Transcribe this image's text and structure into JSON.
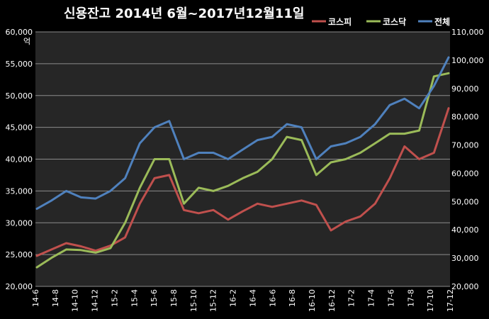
{
  "chart_data": {
    "type": "line",
    "title": "신용잔고 2014년 6월~2017년12월11일",
    "ylabel": "억",
    "ylim_left": [
      20000,
      60000
    ],
    "ylim_right": [
      20000,
      110000
    ],
    "yticks_left": [
      "20,000",
      "25,000",
      "30,000",
      "35,000",
      "40,000",
      "45,000",
      "50,000",
      "55,000",
      "60,000"
    ],
    "yticks_right": [
      "20,000",
      "30,000",
      "40,000",
      "50,000",
      "60,000",
      "70,000",
      "80,000",
      "90,000",
      "100,000",
      "110,000"
    ],
    "x_ticks": [
      "14-6",
      "14-8",
      "14-10",
      "14-12",
      "15-2",
      "15-4",
      "15-6",
      "15-8",
      "15-10",
      "15-12",
      "16-2",
      "16-4",
      "16-6",
      "16-8",
      "16-10",
      "16-12",
      "17-2",
      "17-4",
      "17-6",
      "17-8",
      "17-10",
      "17-12"
    ],
    "grid": "horizontal",
    "legend_position": "top-right",
    "series": [
      {
        "name": "코스피",
        "axis": "left",
        "color": "#c0504d",
        "values": [
          24800,
          25800,
          26800,
          26300,
          25600,
          26400,
          27700,
          33000,
          37000,
          37500,
          32000,
          31500,
          32000,
          30500,
          31800,
          33000,
          32500,
          33000,
          33500,
          32800,
          28800,
          30200,
          31000,
          33000,
          37000,
          42000,
          40000,
          41000,
          48000
        ]
      },
      {
        "name": "코스닥",
        "axis": "left",
        "color": "#9bbb59",
        "values": [
          23000,
          24500,
          25800,
          25700,
          25300,
          26000,
          30000,
          35500,
          40000,
          40000,
          33000,
          35500,
          35000,
          35800,
          37000,
          38000,
          40000,
          43500,
          43000,
          37500,
          39500,
          40000,
          41000,
          42500,
          44000,
          44000,
          44500,
          53000,
          53500
        ]
      },
      {
        "name": "전체",
        "axis": "left",
        "color": "#4f81bd",
        "values": [
          32200,
          33500,
          35000,
          34000,
          33800,
          35000,
          37000,
          42500,
          45000,
          46000,
          40000,
          41000,
          41000,
          40000,
          41500,
          43000,
          43500,
          45500,
          45000,
          40000,
          42000,
          42500,
          43500,
          45500,
          48500,
          49500,
          48000,
          51500,
          56000
        ]
      }
    ]
  }
}
